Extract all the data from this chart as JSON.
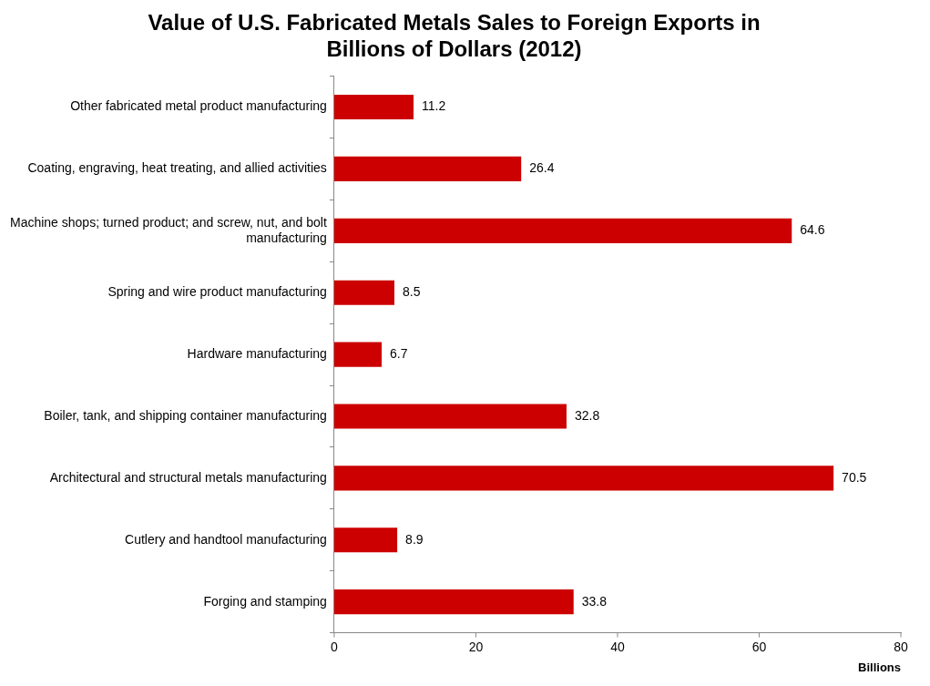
{
  "chart_data": {
    "type": "bar",
    "orientation": "horizontal",
    "title": "Value of U.S. Fabricated Metals Sales to Foreign Exports in Billions of Dollars (2012)",
    "xlabel": "Billions",
    "categories": [
      "Other fabricated metal product manufacturing",
      "Coating, engraving, heat treating, and allied activities",
      "Machine shops; turned product; and screw, nut, and bolt manufacturing",
      "Spring and wire product manufacturing",
      "Hardware manufacturing",
      "Boiler, tank, and shipping container manufacturing",
      "Architectural and structural metals manufacturing",
      "Cutlery and handtool manufacturing",
      "Forging and stamping"
    ],
    "values": [
      11.2,
      26.4,
      64.6,
      8.5,
      6.7,
      32.8,
      70.5,
      8.9,
      33.8
    ],
    "color": "#cc0000",
    "xlim": [
      0,
      80
    ],
    "xticks": [
      0,
      20,
      40,
      60,
      80
    ],
    "data_labels": true,
    "grid": false,
    "legend": false
  }
}
